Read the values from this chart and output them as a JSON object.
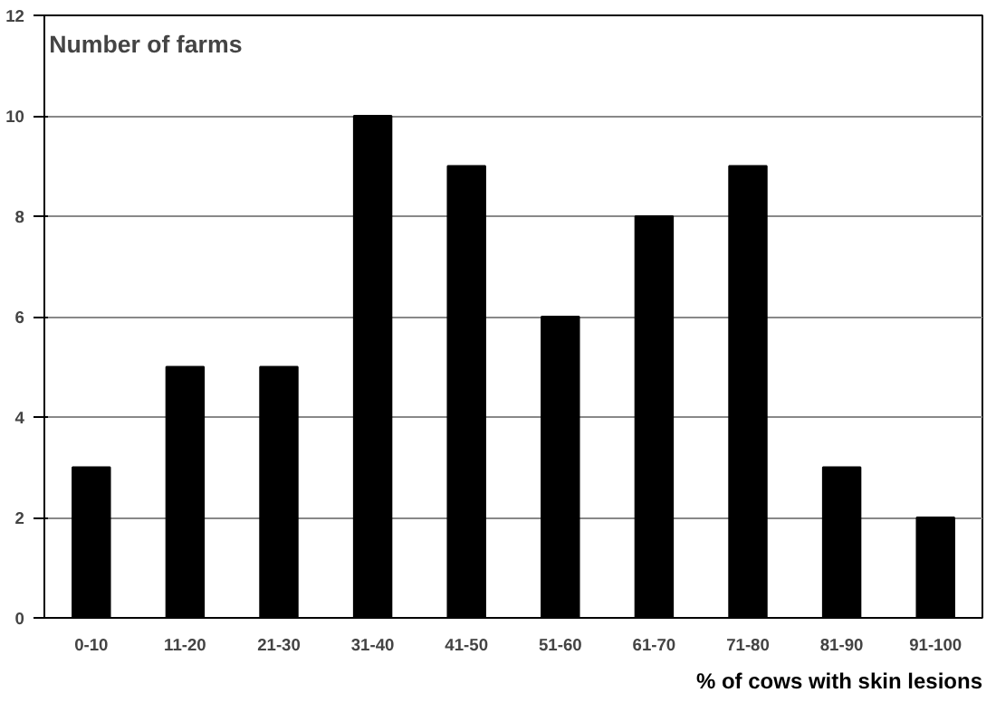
{
  "chart_data": {
    "type": "bar",
    "ylabel": "Number of farms",
    "xlabel": "% of cows with skin lesions",
    "categories": [
      "0-10",
      "11-20",
      "21-30",
      "31-40",
      "41-50",
      "51-60",
      "61-70",
      "71-80",
      "81-90",
      "91-100"
    ],
    "values": [
      3,
      5,
      5,
      10,
      9,
      6,
      8,
      9,
      3,
      2
    ],
    "color": "#000000",
    "ylim": [
      0,
      12
    ],
    "yticks": [
      0,
      2,
      4,
      6,
      8,
      10,
      12
    ],
    "grid": "y"
  }
}
